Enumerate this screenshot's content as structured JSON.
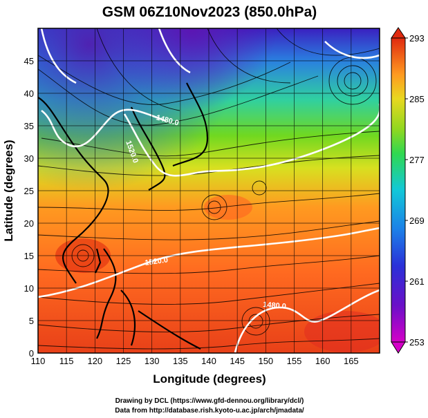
{
  "title": "GSM 06Z10Nov2023 (850.0hPa)",
  "xlabel": "Longitude (degrees)",
  "ylabel": "Latitude  (degrees)",
  "x_ticks": [
    110,
    115,
    120,
    125,
    130,
    135,
    140,
    145,
    150,
    155,
    160,
    165
  ],
  "y_ticks": [
    0,
    5,
    10,
    15,
    20,
    25,
    30,
    35,
    40,
    45
  ],
  "xlim": [
    110,
    170
  ],
  "ylim": [
    0,
    50
  ],
  "colorbar": {
    "ticks": [
      "293",
      "285",
      "277",
      "269",
      "261",
      "253"
    ],
    "range": [
      253,
      293
    ],
    "colors": [
      "#d400c8",
      "#3a00c8",
      "#1f4fd8",
      "#12b4e8",
      "#2ed680",
      "#6ad320",
      "#c8e020",
      "#ffa020",
      "#ff6a20",
      "#e02a10"
    ]
  },
  "contours": [
    {
      "label": "1480.0"
    },
    {
      "label": "1520.0"
    },
    {
      "label": "1520.0"
    },
    {
      "label": "1480.0"
    }
  ],
  "credits": {
    "line1": "Drawing by DCL (https://www.gfd-dennou.org/library/dcl/)",
    "line2": "Data from http://database.rish.kyoto-u.ac.jp/arch/jmadata/"
  }
}
